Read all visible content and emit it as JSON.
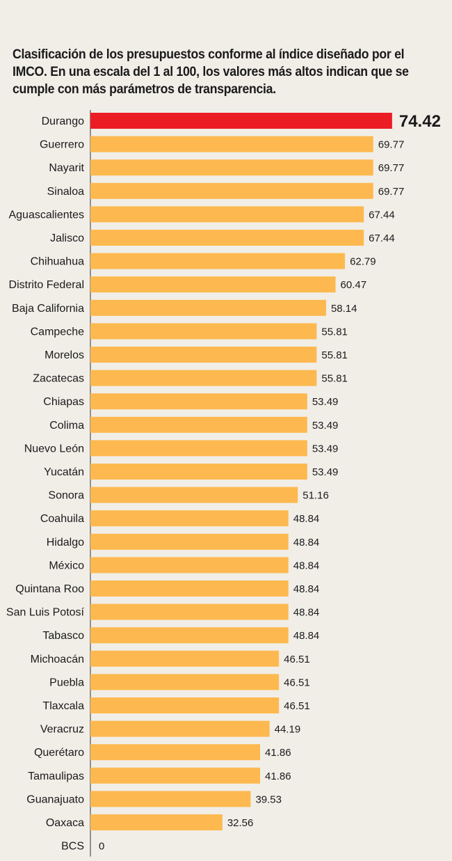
{
  "chart_data": {
    "type": "bar",
    "orientation": "horizontal",
    "title": "Clasificación de los presupuestos conforme al índice diseñado por el IMCO. En una escala del 1 al 100, los valores más altos indican que se cumple con más parámetros de transparencia.",
    "xlabel": "",
    "ylabel": "",
    "xlim": [
      0,
      100
    ],
    "categories": [
      "Durango",
      "Guerrero",
      "Nayarit",
      "Sinaloa",
      "Aguascalientes",
      "Jalisco",
      "Chihuahua",
      "Distrito Federal",
      "Baja California",
      "Campeche",
      "Morelos",
      "Zacatecas",
      "Chiapas",
      "Colima",
      "Nuevo León",
      "Yucatán",
      "Sonora",
      "Coahuila",
      "Hidalgo",
      "México",
      "Quintana Roo",
      "San Luis Potosí",
      "Tabasco",
      "Michoacán",
      "Puebla",
      "Tlaxcala",
      "Veracruz",
      "Querétaro",
      "Tamaulipas",
      "Guanajuato",
      "Oaxaca",
      "BCS"
    ],
    "values": [
      74.42,
      69.77,
      69.77,
      69.77,
      67.44,
      67.44,
      62.79,
      60.47,
      58.14,
      55.81,
      55.81,
      55.81,
      53.49,
      53.49,
      53.49,
      53.49,
      51.16,
      48.84,
      48.84,
      48.84,
      48.84,
      48.84,
      48.84,
      46.51,
      46.51,
      46.51,
      44.19,
      41.86,
      41.86,
      39.53,
      32.56,
      0
    ],
    "value_labels": [
      "74.42",
      "69.77",
      "69.77",
      "69.77",
      "67.44",
      "67.44",
      "62.79",
      "60.47",
      "58.14",
      "55.81",
      "55.81",
      "55.81",
      "53.49",
      "53.49",
      "53.49",
      "53.49",
      "51.16",
      "48.84",
      "48.84",
      "48.84",
      "48.84",
      "48.84",
      "48.84",
      "46.51",
      "46.51",
      "46.51",
      "44.19",
      "41.86",
      "41.86",
      "39.53",
      "32.56",
      "0"
    ],
    "highlight_index": 0,
    "colors": {
      "bar": "#fdb94f",
      "highlight": "#ec1c24",
      "axis": "#333333"
    }
  }
}
